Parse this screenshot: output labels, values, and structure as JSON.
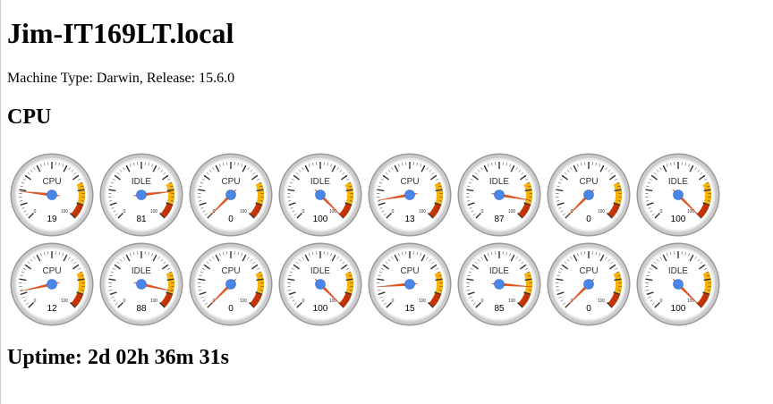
{
  "host": {
    "name": "Jim-IT169LT.local",
    "machine_info": "Machine Type: Darwin, Release: 15.6.0"
  },
  "cpu_section": {
    "heading": "CPU"
  },
  "gauge_scale": {
    "min_label": "0",
    "max_label": "100",
    "min": 0,
    "max": 100
  },
  "gauge_colors": {
    "yellow": "#f7b30a",
    "orange": "#ff8c00",
    "red": "#cc3300",
    "needle": "#e8551f",
    "hub": "#4a86e8",
    "face": "#ffffff",
    "bezel": "#cccccc"
  },
  "gauges": [
    [
      {
        "label": "CPU",
        "value": 19
      },
      {
        "label": "IDLE",
        "value": 81
      },
      {
        "label": "CPU",
        "value": 0
      },
      {
        "label": "IDLE",
        "value": 100
      },
      {
        "label": "CPU",
        "value": 13
      },
      {
        "label": "IDLE",
        "value": 87
      },
      {
        "label": "CPU",
        "value": 0
      },
      {
        "label": "IDLE",
        "value": 100
      }
    ],
    [
      {
        "label": "CPU",
        "value": 12
      },
      {
        "label": "IDLE",
        "value": 88
      },
      {
        "label": "CPU",
        "value": 0
      },
      {
        "label": "IDLE",
        "value": 100
      },
      {
        "label": "CPU",
        "value": 15
      },
      {
        "label": "IDLE",
        "value": 85
      },
      {
        "label": "CPU",
        "value": 0
      },
      {
        "label": "IDLE",
        "value": 100
      }
    ]
  ],
  "uptime": {
    "text": "Uptime: 2d 02h 36m 31s"
  }
}
